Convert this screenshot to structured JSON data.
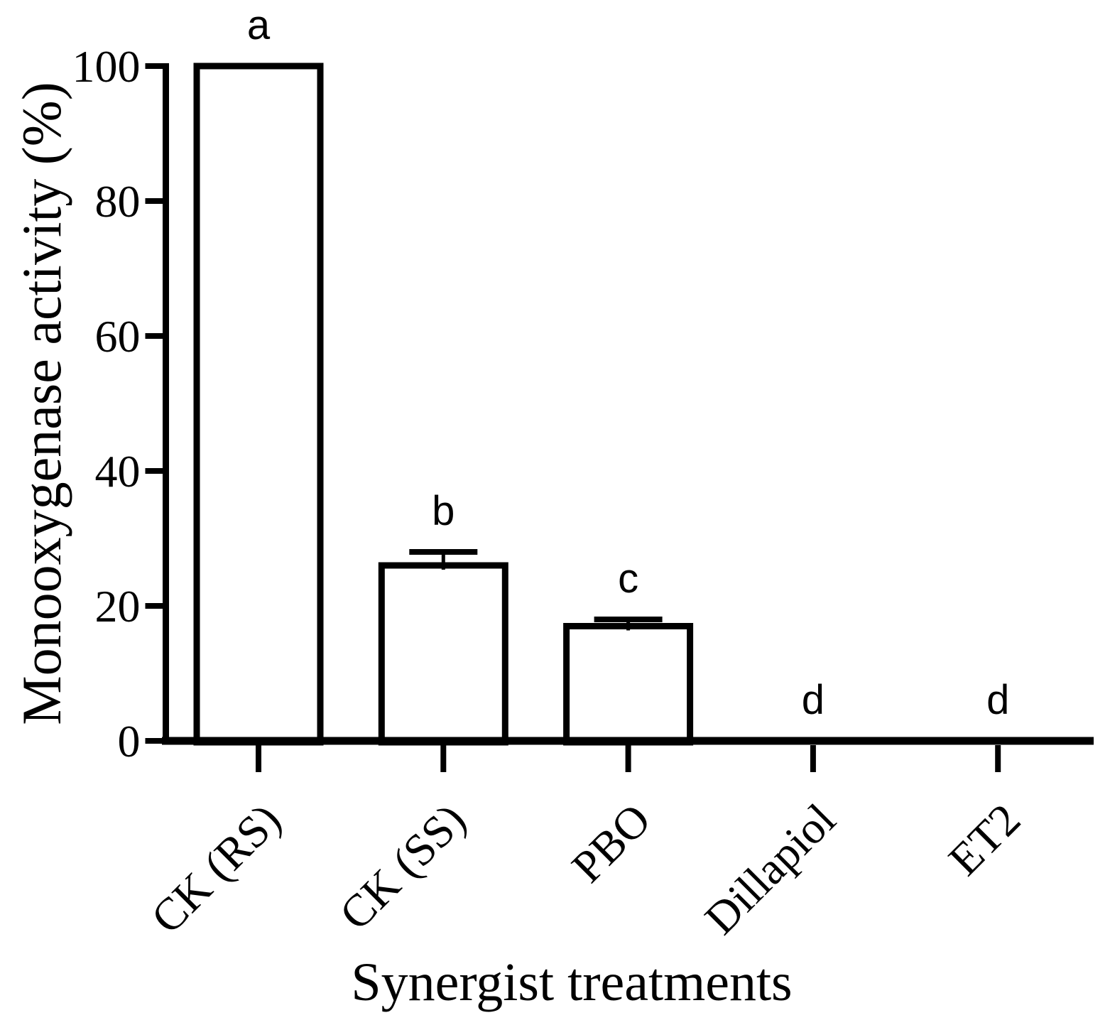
{
  "chart_data": {
    "type": "bar",
    "title": "",
    "xlabel": "Synergist treatments",
    "ylabel": "Monooxygenase activity (%)",
    "categories": [
      "CK (RS)",
      "CK (SS)",
      "PBO",
      "Dillapiol",
      "ET2"
    ],
    "values": [
      100,
      26,
      17,
      0,
      0
    ],
    "errors_upper": [
      0,
      2,
      1,
      0,
      0
    ],
    "sig_letters": [
      "a",
      "b",
      "c",
      "d",
      "d"
    ],
    "ylim": [
      0,
      100
    ],
    "yticks": [
      0,
      20,
      40,
      60,
      80,
      100
    ],
    "grid": false,
    "legend": "none",
    "colors": {
      "bar_fill": "#ffffff",
      "bar_stroke": "#000000",
      "axis": "#000000",
      "text": "#000000"
    }
  }
}
